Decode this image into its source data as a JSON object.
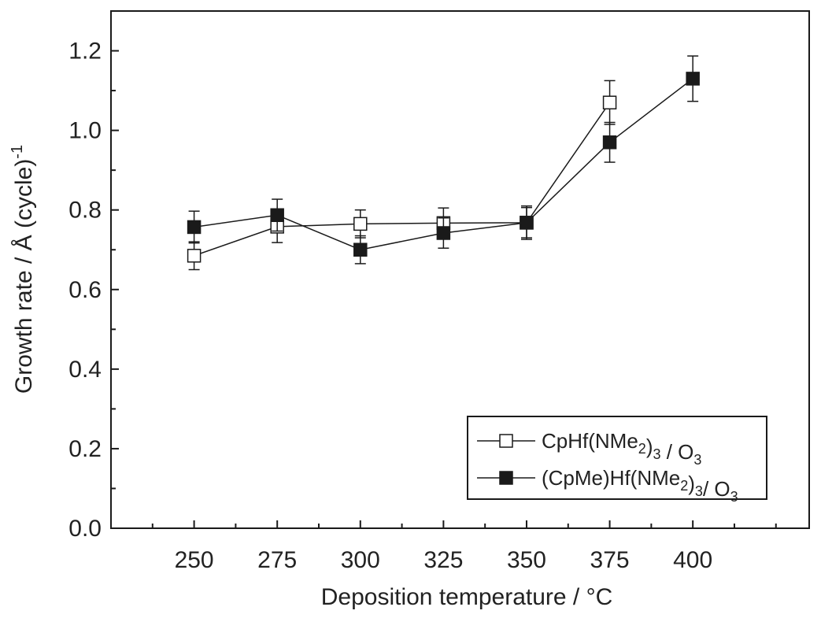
{
  "chart_data": {
    "type": "scatter",
    "xlabel": "Deposition temperature / °C",
    "ylabel_main": "Growth rate / Å (cycle)",
    "ylabel_sup": "-1",
    "xlim": [
      225,
      435
    ],
    "ylim": [
      0.0,
      1.3
    ],
    "x_ticks": [
      250,
      275,
      300,
      325,
      350,
      375,
      400
    ],
    "x_tick_labels": [
      "250",
      "275",
      "300",
      "325",
      "350",
      "375",
      "400"
    ],
    "y_ticks": [
      0.0,
      0.2,
      0.4,
      0.6,
      0.8,
      1.0,
      1.2
    ],
    "y_tick_labels": [
      "0.0",
      "0.2",
      "0.4",
      "0.6",
      "0.8",
      "1.0",
      "1.2"
    ],
    "legend_position": "bottom-right",
    "series": [
      {
        "name": "CpHf(NMe2)3 / O3",
        "legend_parts": [
          {
            "t": "CpHf(NMe"
          },
          {
            "t": "2",
            "sub": true
          },
          {
            "t": ")"
          },
          {
            "t": "3",
            "sub": true
          },
          {
            "t": " / O"
          },
          {
            "t": "3",
            "sub": true
          }
        ],
        "marker": "open-square",
        "color": "#1a1a1a",
        "x": [
          250,
          275,
          300,
          325,
          350,
          375
        ],
        "y": [
          0.685,
          0.758,
          0.765,
          0.767,
          0.768,
          1.07
        ],
        "err": [
          0.035,
          0.04,
          0.035,
          0.038,
          0.038,
          0.055
        ]
      },
      {
        "name": "(CpMe)Hf(NMe2)3/ O3",
        "legend_parts": [
          {
            "t": "(CpMe)Hf(NMe"
          },
          {
            "t": "2",
            "sub": true
          },
          {
            "t": ")"
          },
          {
            "t": "3",
            "sub": true
          },
          {
            "t": "/ O"
          },
          {
            "t": "3",
            "sub": true
          }
        ],
        "marker": "filled-square",
        "color": "#1a1a1a",
        "x": [
          250,
          275,
          300,
          325,
          350,
          375,
          400
        ],
        "y": [
          0.757,
          0.787,
          0.7,
          0.742,
          0.768,
          0.97,
          1.13
        ],
        "err": [
          0.04,
          0.04,
          0.035,
          0.038,
          0.042,
          0.05,
          0.057
        ]
      }
    ]
  }
}
